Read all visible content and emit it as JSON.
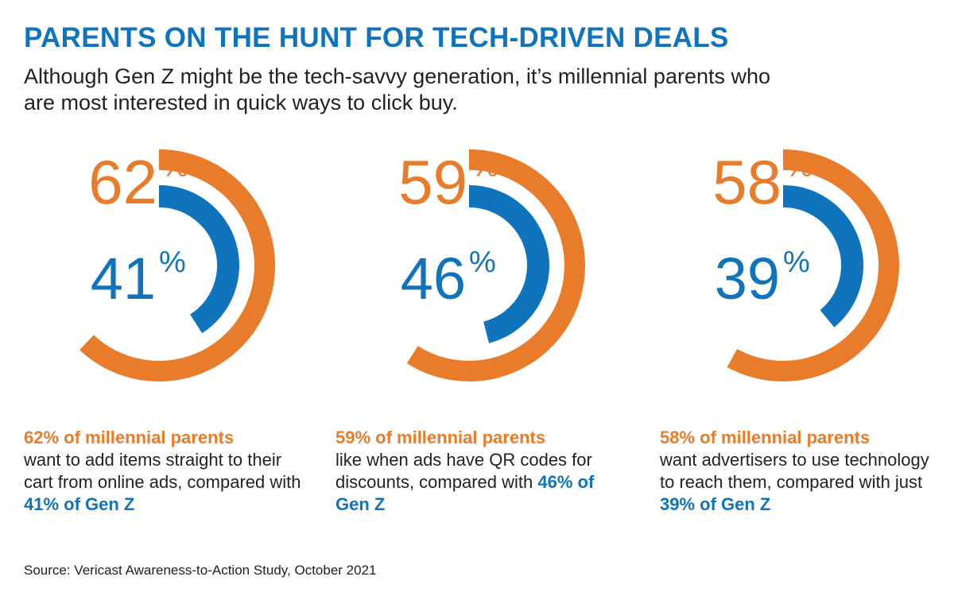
{
  "header": {
    "title": "PARENTS ON THE HUNT FOR TECH-DRIVEN DEALS",
    "subtitle": "Although Gen Z might be the tech-savvy generation, it’s millennial parents who are most interested in quick ways to click buy."
  },
  "colors": {
    "millennial": "#e87c2a",
    "genz": "#0f74bc",
    "text": "#222222"
  },
  "chart_data": [
    {
      "type": "radial-bar",
      "series": [
        {
          "name": "millennial parents",
          "value": 62,
          "unit": "%"
        },
        {
          "name": "Gen Z",
          "value": 41,
          "unit": "%"
        }
      ],
      "description": {
        "lead": "62% of millennial parents",
        "body": "want to add items straight to their cart from online ads, compared with",
        "tail": "41% of Gen Z"
      }
    },
    {
      "type": "radial-bar",
      "series": [
        {
          "name": "millennial parents",
          "value": 59,
          "unit": "%"
        },
        {
          "name": "Gen Z",
          "value": 46,
          "unit": "%"
        }
      ],
      "description": {
        "lead": "59% of millennial parents",
        "body": "like when ads have QR codes for discounts, compared with",
        "tail": "46% of Gen Z"
      }
    },
    {
      "type": "radial-bar",
      "series": [
        {
          "name": "millennial parents",
          "value": 58,
          "unit": "%"
        },
        {
          "name": "Gen Z",
          "value": 39,
          "unit": "%"
        }
      ],
      "description": {
        "lead": "58% of millennial parents",
        "body": "want advertisers to use technology to reach them, compared with just",
        "tail": "39% of Gen Z"
      }
    }
  ],
  "footer": {
    "source": "Source: Vericast Awareness-to-Action Study, October 2021"
  }
}
